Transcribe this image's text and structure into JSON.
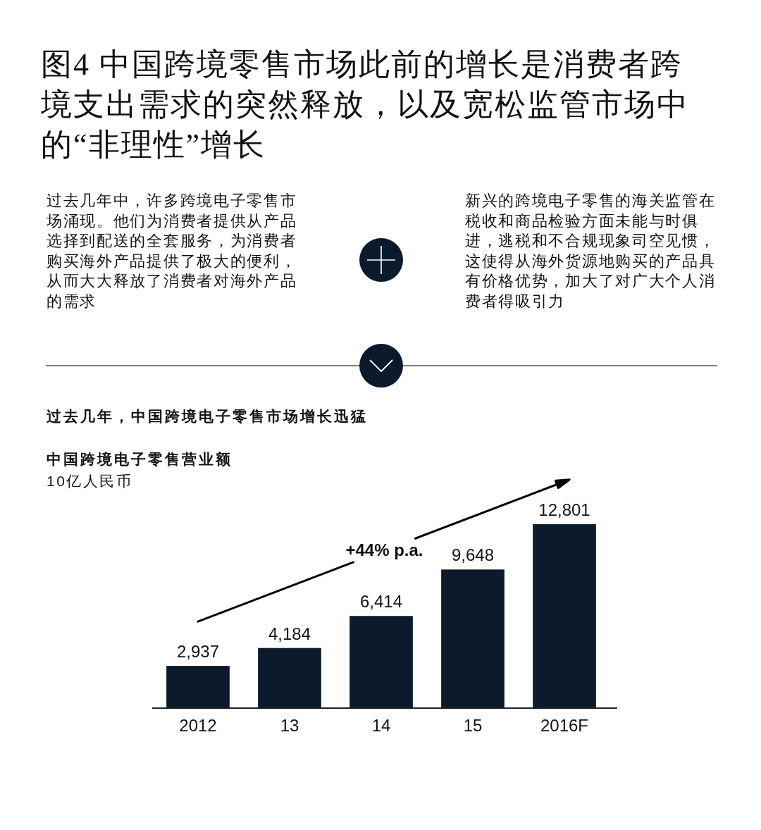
{
  "chart_data": {
    "type": "bar",
    "title": "图4 中国跨境零售市场此前的增长是消费者跨境支出需求的突然释放，以及宽松监管市场中的“非理性”增长",
    "subtitle": "中国跨境电子零售营业额",
    "ylabel": "10亿人民币",
    "categories": [
      "2012",
      "13",
      "14",
      "15",
      "2016F"
    ],
    "values": [
      2937,
      4184,
      6414,
      9648,
      12801
    ],
    "value_labels": [
      "2,937",
      "4,184",
      "6,414",
      "9,648",
      "12,801"
    ],
    "color": "#0b1b2b",
    "annotations": [
      "过去几年中，许多跨境电子零售市场涌现。他们为消费者提供从产品选择到配送的全套服务，为消费者购买海外产品提供了极大的便利，从而大大释放了消费者对海外产品的需求",
      "新兴的跨境电子零售的海关监管在税收和商品检验方面未能与时俱进，逃税和不合规现象司空见惯，这使得从海外货源地购买的产品具有价格优势，加大了对广大个人消费者得吸引力",
      "过去几年，中国跨境电子零售市场增长迅猛",
      "+44% p.a."
    ]
  }
}
